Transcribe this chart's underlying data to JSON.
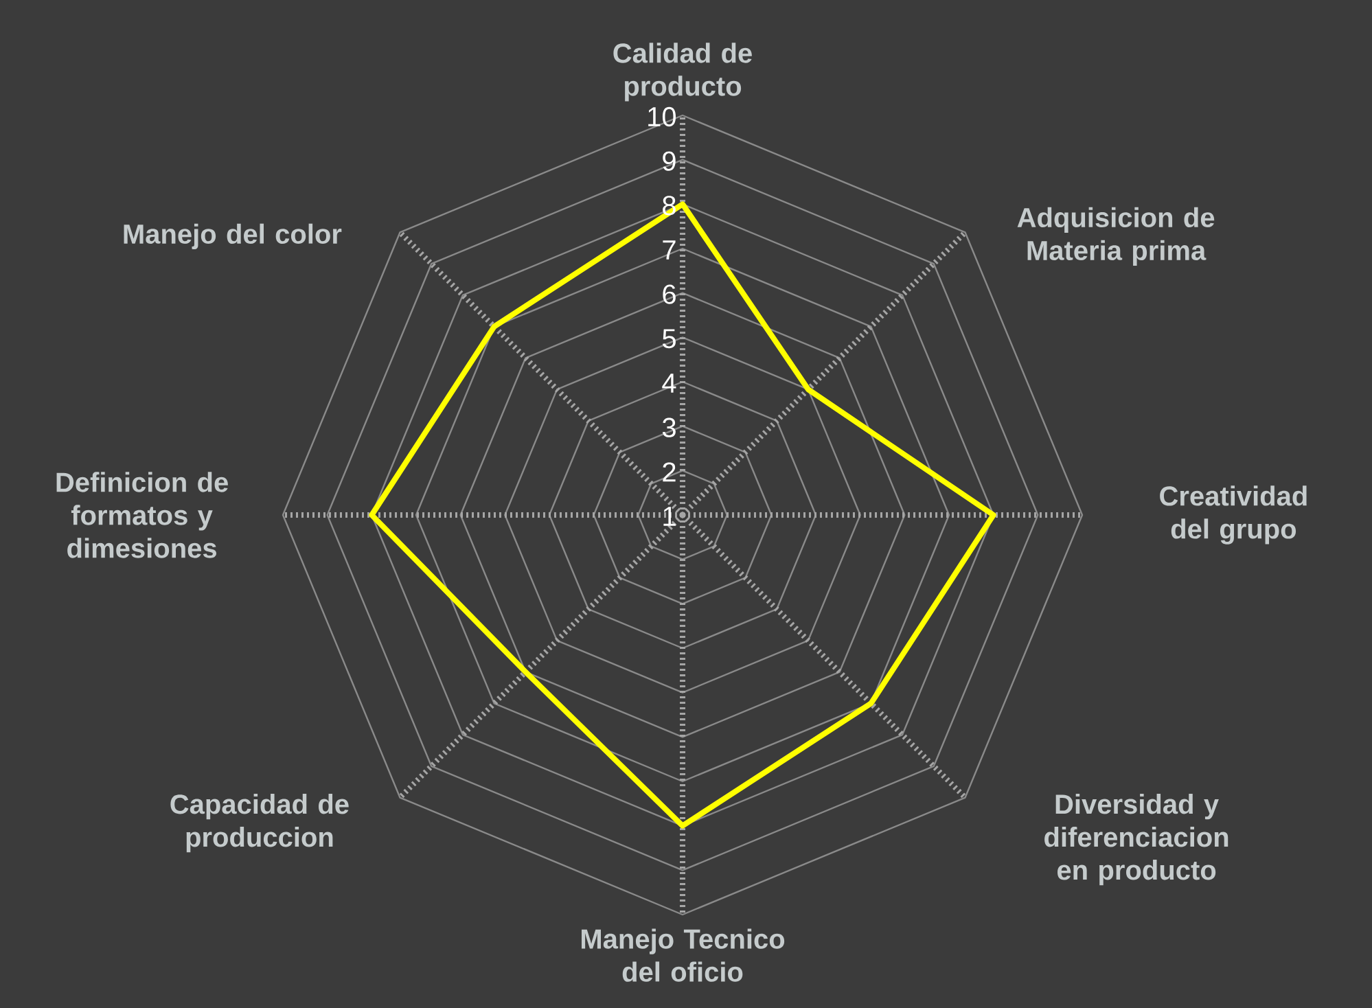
{
  "chart_data": {
    "type": "radar",
    "categories": [
      "Calidad de producto",
      "Adquisicion de Materia prima",
      "Creatividad del grupo",
      "Diversidad y diferenciacion en producto",
      "Manejo Tecnico del oficio",
      "Capacidad de produccion",
      "Definicion de formatos y dimesiones",
      "Manejo del color"
    ],
    "series": [
      {
        "color": "#ffff00",
        "values": [
          8,
          5,
          8,
          7,
          8,
          6,
          8,
          7
        ]
      }
    ],
    "ylim": [
      1,
      10
    ],
    "yticks": [
      1,
      2,
      3,
      4,
      5,
      6,
      7,
      8,
      9,
      10
    ],
    "grid": true,
    "marker": "none",
    "line_style": "solid"
  }
}
